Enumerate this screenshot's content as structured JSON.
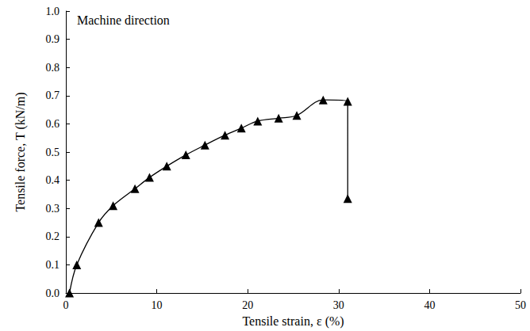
{
  "chart_data": {
    "type": "line",
    "annotation": "Machine direction",
    "x_label": "Tensile strain, ε (%)",
    "y_label": "Tensile force, T (kN/m)",
    "series": [
      {
        "name": "Machine direction",
        "color": "#000000",
        "marker": "triangle",
        "line_style": "solid",
        "x": [
          0.4,
          1.2,
          3.6,
          5.2,
          7.6,
          9.2,
          11.1,
          13.2,
          15.3,
          17.5,
          19.3,
          21.1,
          23.4,
          25.4,
          28.3,
          31.0,
          31.0
        ],
        "values": [
          0.0,
          0.1,
          0.25,
          0.31,
          0.37,
          0.41,
          0.45,
          0.49,
          0.525,
          0.56,
          0.585,
          0.61,
          0.62,
          0.63,
          0.685,
          0.68,
          0.335
        ]
      }
    ],
    "xlim": [
      0,
      50
    ],
    "xticks": [
      0,
      10,
      20,
      30,
      40,
      50
    ],
    "ylim": [
      0,
      1
    ],
    "yticks": [
      {
        "value": 0,
        "label": "0.0"
      },
      0.1,
      0.2,
      0.3,
      0.4,
      0.5,
      0.6,
      0.7,
      0.8,
      0.9,
      {
        "value": 1,
        "label": "1.0"
      }
    ],
    "grid": false
  }
}
